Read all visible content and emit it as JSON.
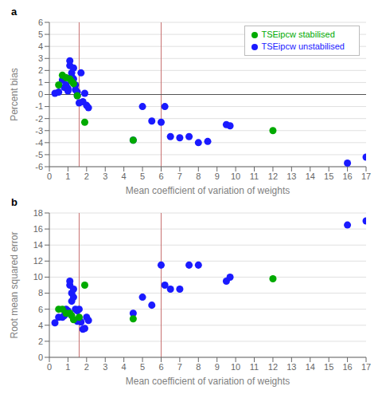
{
  "chart_data": [
    {
      "type": "scatter",
      "title": "a",
      "xlabel": "Mean coefficient of variation of weights",
      "ylabel": "Percent bias",
      "xlim": [
        0,
        17
      ],
      "ylim": [
        -6,
        6
      ],
      "xticks": [
        0,
        1,
        2,
        3,
        4,
        5,
        6,
        7,
        8,
        9,
        10,
        11,
        12,
        13,
        14,
        15,
        16,
        17
      ],
      "yticks": [
        -6,
        -5,
        -4,
        -3,
        -2,
        -1,
        0,
        1,
        2,
        3,
        4,
        5,
        6
      ],
      "grid": "y",
      "legend": "upper right",
      "series": [
        {
          "name": "TSEipcw unstabilised",
          "color": "#1a1aff",
          "marker": "o",
          "x": [
            0.3,
            0.5,
            0.7,
            0.8,
            0.9,
            1.0,
            1.0,
            1.1,
            1.1,
            1.2,
            1.2,
            1.3,
            1.3,
            1.4,
            1.4,
            1.5,
            1.5,
            1.6,
            1.7,
            1.8,
            1.9,
            2.0,
            2.1,
            4.5,
            5.0,
            5.5,
            6.0,
            6.2,
            6.5,
            7.0,
            7.5,
            8.0,
            8.5,
            9.5,
            9.7,
            16.0,
            17.0
          ],
          "y": [
            0.1,
            0.2,
            1.2,
            0.6,
            0.8,
            0.5,
            0.3,
            2.4,
            2.8,
            1.8,
            1.5,
            2.2,
            1.3,
            0.8,
            0.4,
            0.2,
            -0.1,
            -0.7,
            1.8,
            -0.6,
            0.1,
            -0.9,
            -1.1,
            -3.8,
            -1.0,
            -2.2,
            -2.3,
            -1.0,
            -3.5,
            -3.6,
            -3.5,
            -4.0,
            -3.9,
            -2.5,
            -2.6,
            -5.7,
            -5.2
          ]
        },
        {
          "name": "TSEipcw stabilised",
          "color": "#00aa00",
          "marker": "o",
          "x": [
            0.5,
            0.7,
            0.9,
            1.1,
            1.2,
            1.3,
            1.5,
            1.9,
            4.5,
            12.0
          ],
          "y": [
            0.8,
            1.6,
            1.4,
            1.3,
            1.1,
            0.9,
            -0.1,
            -2.3,
            -3.8,
            -3.0
          ]
        }
      ],
      "reference_lines": [
        {
          "axis": "x",
          "value": 1.6,
          "color": "#c87070"
        },
        {
          "axis": "x",
          "value": 6.0,
          "color": "#c87070"
        },
        {
          "axis": "y",
          "value": 0.0,
          "color": "#555555"
        }
      ]
    },
    {
      "type": "scatter",
      "title": "b",
      "xlabel": "Mean coefficient of variation of weights",
      "ylabel": "Root mean squared error",
      "xlim": [
        0,
        17
      ],
      "ylim": [
        0,
        18
      ],
      "xticks": [
        0,
        1,
        2,
        3,
        4,
        5,
        6,
        7,
        8,
        9,
        10,
        11,
        12,
        13,
        14,
        15,
        16,
        17
      ],
      "yticks": [
        0,
        2,
        4,
        6,
        8,
        10,
        12,
        14,
        16,
        18
      ],
      "grid": "y",
      "series": [
        {
          "name": "TSEipcw unstabilised",
          "color": "#1a1aff",
          "marker": "o",
          "x": [
            0.3,
            0.5,
            0.7,
            0.8,
            0.9,
            1.0,
            1.0,
            1.1,
            1.1,
            1.2,
            1.2,
            1.3,
            1.3,
            1.4,
            1.5,
            1.5,
            1.6,
            1.6,
            1.7,
            1.8,
            1.9,
            2.0,
            2.1,
            4.5,
            5.0,
            5.5,
            6.0,
            6.2,
            6.5,
            7.0,
            7.5,
            8.0,
            9.5,
            9.7,
            16.0,
            17.0
          ],
          "y": [
            4.3,
            5.0,
            5.0,
            5.2,
            6.0,
            5.8,
            5.5,
            9.0,
            9.5,
            8.0,
            7.0,
            8.5,
            7.5,
            6.0,
            5.8,
            4.5,
            4.6,
            6.0,
            4.4,
            3.5,
            3.6,
            5.0,
            4.6,
            5.5,
            7.5,
            6.5,
            11.5,
            9.0,
            8.5,
            8.5,
            11.5,
            11.5,
            9.5,
            10.0,
            16.5,
            17.0
          ]
        },
        {
          "name": "TSEipcw stabilised",
          "color": "#00aa00",
          "marker": "o",
          "x": [
            0.5,
            0.7,
            0.9,
            1.1,
            1.2,
            1.3,
            1.6,
            1.9,
            4.5,
            12.0
          ],
          "y": [
            6.0,
            6.0,
            5.5,
            5.5,
            5.2,
            4.7,
            5.0,
            9.0,
            4.8,
            9.8
          ]
        }
      ],
      "reference_lines": [
        {
          "axis": "x",
          "value": 1.6,
          "color": "#c87070"
        },
        {
          "axis": "x",
          "value": 6.0,
          "color": "#c87070"
        }
      ]
    }
  ]
}
